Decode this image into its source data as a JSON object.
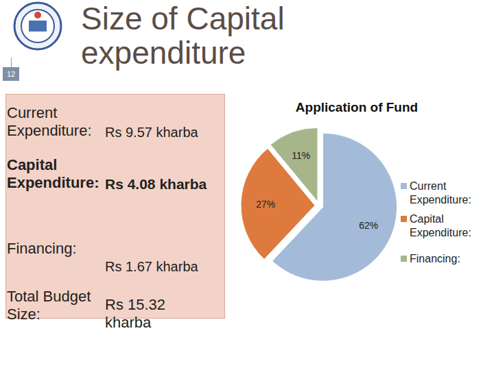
{
  "slide": {
    "title": "Size of Capital expenditure",
    "page_number": "12",
    "rows": [
      {
        "label": "Current Expenditure:",
        "value": "Rs 9.57 kharba"
      },
      {
        "label": "Capital Expenditure:",
        "value": "Rs 4.08 kharba"
      },
      {
        "label": "Financing:",
        "value": "Rs 1.67 kharba"
      },
      {
        "label": "Total Budget Size:",
        "value": "Rs 15.32 kharba"
      }
    ]
  },
  "chart_data": {
    "type": "pie",
    "title": "Application of Fund",
    "categories": [
      "Current Expenditure:",
      "Capital Expenditure:",
      "Financing:"
    ],
    "values": [
      62,
      27,
      11
    ],
    "value_labels": [
      "62%",
      "27%",
      "11%"
    ],
    "colors": [
      "#a3bbd8",
      "#de7a3e",
      "#a7b58b"
    ],
    "data_labels": true,
    "legend": "right"
  }
}
